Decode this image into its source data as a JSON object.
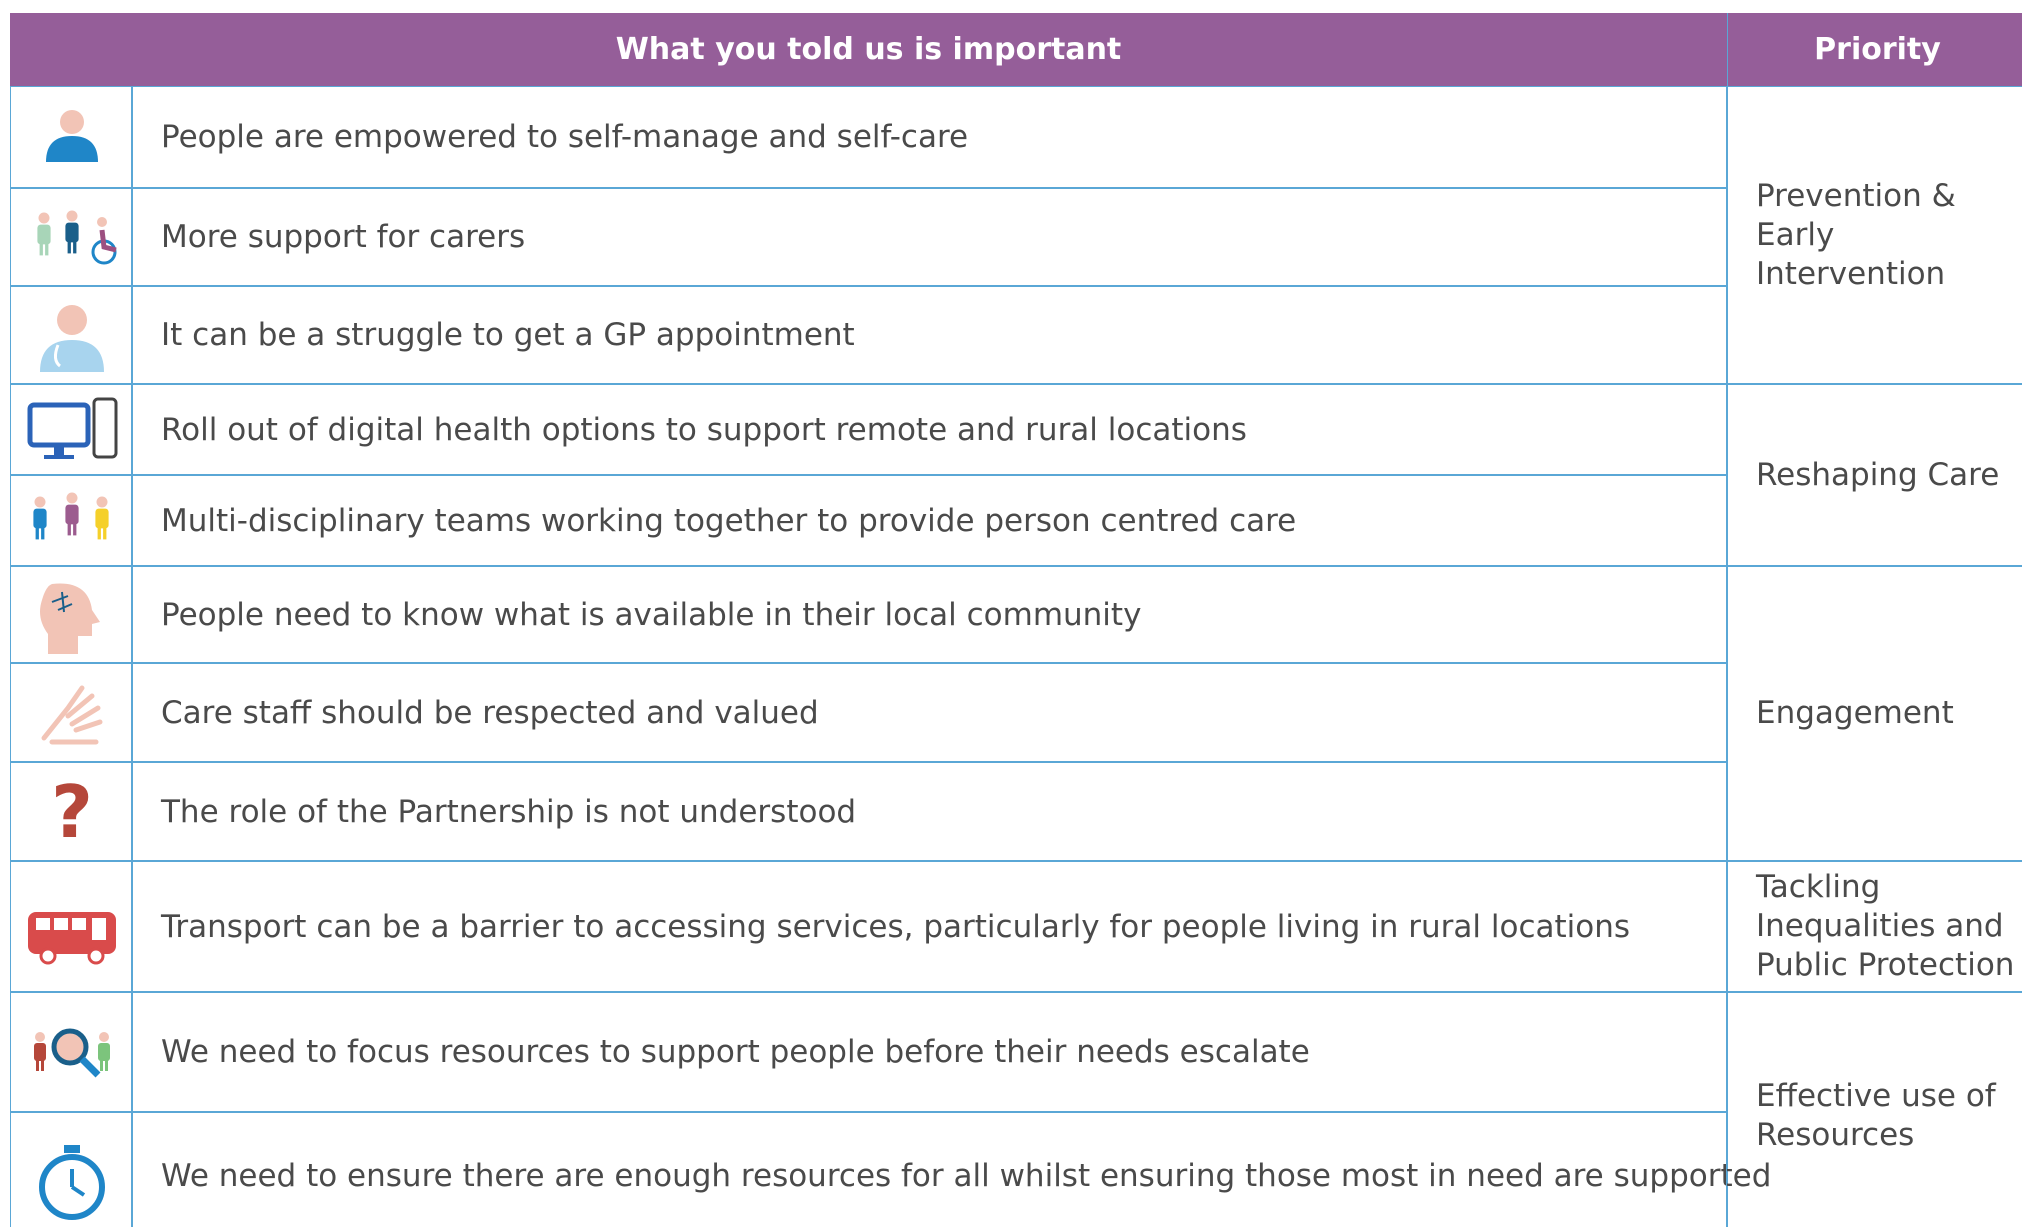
{
  "header": {
    "columns": [
      "What you told us is important",
      "Priority"
    ]
  },
  "groups": [
    {
      "priority": "Prevention & Early Intervention",
      "items": [
        "People are empowered to self-manage and self-care",
        "More support for carers",
        "It can be a struggle to get a GP appointment"
      ]
    },
    {
      "priority": "Reshaping Care",
      "items": [
        "Roll out of digital health options to support remote and rural locations",
        "Multi-disciplinary teams working together to provide person centred care"
      ]
    },
    {
      "priority": "Engagement",
      "items": [
        "People need to know what is available in their local community",
        "Care staff should be respected and valued",
        "The role of the Partnership is not understood"
      ]
    },
    {
      "priority": "Tackling Inequalities and Public Protection",
      "items": [
        "Transport can be a barrier to accessing services, particularly for people living in rural locations"
      ]
    },
    {
      "priority": "Effective use of Resources",
      "items": [
        "We need to focus resources to support people before their needs escalate",
        "We need to ensure there are enough resources for all whilst ensuring those most in need are supported"
      ]
    }
  ]
}
